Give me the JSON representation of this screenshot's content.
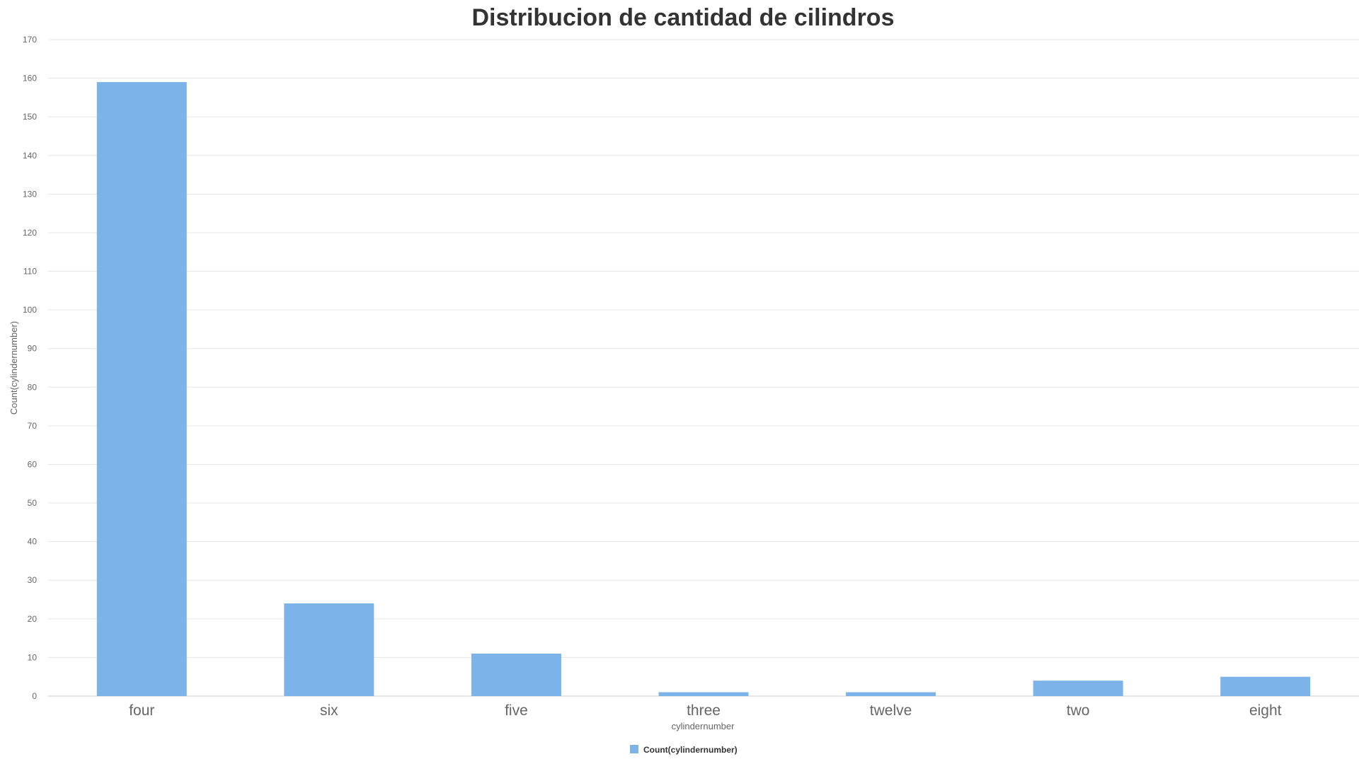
{
  "chart_data": {
    "type": "bar",
    "title": "Distribucion de cantidad de cilindros",
    "xlabel": "cylindernumber",
    "ylabel": "Count(cylindernumber)",
    "categories": [
      "four",
      "six",
      "five",
      "three",
      "twelve",
      "two",
      "eight"
    ],
    "series": [
      {
        "name": "Count(cylindernumber)",
        "values": [
          159,
          24,
          11,
          1,
          1,
          4,
          5
        ],
        "color": "#7cb3e9"
      }
    ],
    "ylim": [
      0,
      170
    ],
    "yticks": [
      0,
      10,
      20,
      30,
      40,
      50,
      60,
      70,
      80,
      90,
      100,
      110,
      120,
      130,
      140,
      150,
      160,
      170
    ],
    "grid": true,
    "legend_position": "bottom-center"
  }
}
